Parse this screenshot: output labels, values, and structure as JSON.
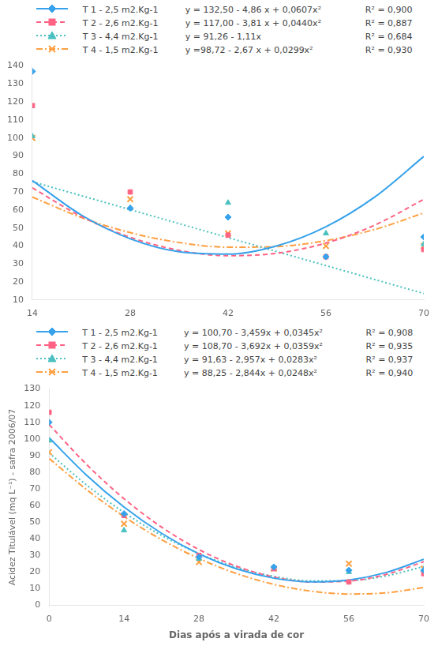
{
  "chart_data": [
    {
      "type": "scatter",
      "xlim": [
        14,
        70
      ],
      "ylim": [
        10,
        140
      ],
      "xticks": [
        14,
        28,
        42,
        56,
        70
      ],
      "yticks": [
        10,
        20,
        30,
        40,
        50,
        60,
        70,
        80,
        90,
        100,
        110,
        120,
        130,
        140
      ],
      "grid": false,
      "legend": "top",
      "series": [
        {
          "name": "T 1 - 2,5 m2.Kg-1",
          "marker": "diamond",
          "line_style": "solid",
          "x": [
            14,
            28,
            42,
            56,
            70
          ],
          "values": [
            137,
            61,
            56,
            34,
            45
          ],
          "fit": {
            "equation": "y = 132,50 - 4,86 x + 0,0607x²",
            "r2": "R² = 0,900",
            "x": [
              14,
              21,
              28,
              35,
              42,
              49,
              56,
              63,
              70
            ],
            "values": [
              76.3572,
              57.2087,
              44.0088,
              36.7575,
              35.4548,
              40.1007,
              50.6952,
              67.2383,
              89.73
            ]
          }
        },
        {
          "name": "T 2 - 2,6 m2.Kg-1",
          "marker": "square",
          "line_style": "dashed",
          "x": [
            14,
            28,
            42,
            56,
            70
          ],
          "values": [
            118,
            70,
            46,
            34,
            38
          ],
          "fit": {
            "equation": "y = 117,00 - 3,81 x + 0,0440x²",
            "r2": "R² = 0,887",
            "x": [
              14,
              21,
              28,
              35,
              42,
              49,
              56,
              63,
              70
            ],
            "values": [
              72.284,
              56.394,
              44.816,
              37.55,
              34.596,
              35.954,
              41.624,
              51.606,
              65.9
            ]
          }
        },
        {
          "name": "T 3 - 4,4 m2.Kg-1",
          "marker": "triangle",
          "line_style": "dotted",
          "x": [
            14,
            28,
            42,
            56,
            70
          ],
          "values": [
            101,
            61,
            64,
            47,
            41
          ],
          "fit": {
            "equation": "y = 91,26 - 1,11x",
            "r2": "R² = 0,684",
            "x": [
              14,
              21,
              28,
              35,
              42,
              49,
              56,
              63,
              70
            ],
            "values": [
              75.72,
              67.95,
              60.18,
              52.41,
              44.64,
              36.87,
              29.1,
              21.33,
              13.56
            ]
          }
        },
        {
          "name": "T 4 - 1,5 m2.Kg-1",
          "marker": "x",
          "line_style": "dashdot",
          "x": [
            14,
            28,
            42,
            56,
            70
          ],
          "values": [
            100,
            66,
            47,
            40,
            40
          ],
          "fit": {
            "equation": "y =98,72 - 2,67 x + 0,0299x²",
            "r2": "R² = 0,930",
            "x": [
              14,
              21,
              28,
              35,
              42,
              49,
              56,
              63,
              70
            ],
            "values": [
              67.2004,
              55.8359,
              47.4016,
              41.8975,
              39.3236,
              39.6799,
              42.9664,
              49.1831,
              58.33
            ]
          }
        }
      ]
    },
    {
      "type": "scatter",
      "xlabel": "Dias após a virada de cor",
      "ylabel": "Acidez Titulável (mq L⁻¹) - safra 2006/07",
      "xlim": [
        0,
        70
      ],
      "ylim": [
        0,
        130
      ],
      "xticks": [
        0,
        14,
        28,
        42,
        56,
        70
      ],
      "yticks": [
        0,
        10,
        20,
        30,
        40,
        50,
        60,
        70,
        80,
        90,
        100,
        110,
        120,
        130
      ],
      "grid": false,
      "legend": "top",
      "series": [
        {
          "name": "T 1 - 2,5 m2.Kg-1",
          "marker": "diamond",
          "line_style": "solid",
          "x": [
            0,
            14,
            28,
            42,
            56,
            70
          ],
          "values": [
            110,
            55,
            29,
            23,
            21,
            21
          ],
          "fit": {
            "equation": "y = 100,70 - 3,459x + 0,0345x²",
            "r2": "R² = 0,908",
            "x": [
              0,
              7,
              14,
              21,
              28,
              35,
              42,
              49,
              56,
              63,
              70
            ],
            "values": [
              100.7,
              78.1775,
              59.036,
              43.2755,
              30.896,
              21.8975,
              16.28,
              14.0435,
              15.188,
              19.7135,
              27.62
            ]
          }
        },
        {
          "name": "T 2 - 2,6 m2.Kg-1",
          "marker": "square",
          "line_style": "dashed",
          "x": [
            0,
            14,
            28,
            42,
            56,
            70
          ],
          "values": [
            116,
            54,
            30,
            22,
            14,
            19
          ],
          "fit": {
            "equation": "y = 108,70 - 3,692x + 0,0359x²",
            "r2": "R² = 0,935",
            "x": [
              0,
              7,
              14,
              21,
              28,
              35,
              42,
              49,
              56,
              63,
              70
            ],
            "values": [
              108.7,
              84.6151,
              64.0484,
              46.9999,
              33.4696,
              23.4575,
              16.9636,
              13.9879,
              14.5304,
              18.5911,
              26.17
            ]
          }
        },
        {
          "name": "T 3 - 4,4 m2.Kg-1",
          "marker": "triangle",
          "line_style": "dotted",
          "x": [
            0,
            14,
            28,
            42,
            56,
            70
          ],
          "values": [
            99,
            45,
            28,
            22,
            20,
            21
          ],
          "fit": {
            "equation": "y = 91,63 - 2,957x + 0,0283x²",
            "r2": "R² = 0,937",
            "x": [
              0,
              7,
              14,
              21,
              28,
              35,
              42,
              49,
              56,
              63,
              70
            ],
            "values": [
              91.63,
              72.3177,
              55.7788,
              42.0133,
              31.0212,
              22.8025,
              17.3572,
              14.6853,
              14.7868,
              17.6617,
              23.31
            ]
          }
        },
        {
          "name": "T 4 - 1,5 m2.Kg-1",
          "marker": "x",
          "line_style": "dashdot",
          "x": [
            0,
            14,
            28,
            42,
            56,
            70
          ],
          "values": [
            92,
            49,
            26,
            22,
            25,
            22
          ],
          "fit": {
            "equation": "y = 88,25 - 2,844x + 0,0248x²",
            "r2": "R² = 0,940",
            "x": [
              0,
              7,
              14,
              21,
              28,
              35,
              42,
              49,
              56,
              63,
              70
            ],
            "values": [
              88.25,
              69.5572,
              53.2948,
              39.4628,
              28.0612,
              19.09,
              12.5492,
              8.4388,
              6.7588,
              7.5092,
              10.69
            ]
          }
        }
      ]
    }
  ]
}
